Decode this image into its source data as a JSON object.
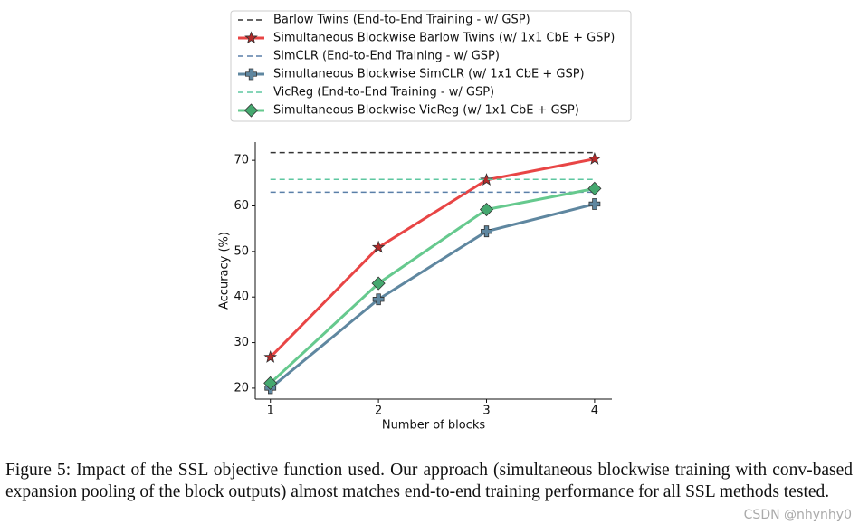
{
  "chart_data": {
    "type": "line",
    "x": [
      1,
      2,
      3,
      4
    ],
    "xlim": [
      0.86,
      4.16
    ],
    "xticks": [
      1,
      2,
      3,
      4
    ],
    "ylim": [
      17.6,
      74
    ],
    "yticks": [
      20,
      30,
      40,
      50,
      60,
      70
    ],
    "x_label": "Number of blocks",
    "y_label": "Accuracy (%)",
    "grid": false,
    "legend": "top",
    "series": [
      {
        "name": "Barlow Twins (End-to-End Training - w/ GSP)",
        "color": "#333333",
        "style": "dashed",
        "values": [
          71.7,
          71.7,
          71.7,
          71.7
        ]
      },
      {
        "name": "Simultaneous Blockwise Barlow Twins (w/ 1x1 CbE + GSP)",
        "color": "#e84545",
        "marker_color": "#b52a2a",
        "style": "solid",
        "marker": "star",
        "values": [
          26.8,
          50.9,
          65.7,
          70.3
        ]
      },
      {
        "name": "SimCLR (End-to-End Training - w/ GSP)",
        "color": "#5a7fa8",
        "style": "dashed",
        "values": [
          63.0,
          63.0,
          63.0,
          63.0
        ]
      },
      {
        "name": "Simultaneous Blockwise SimCLR (w/ 1x1 CbE + GSP)",
        "color": "#5f87a0",
        "marker_color": "#5f87a0",
        "style": "solid",
        "marker": "plus",
        "values": [
          20.0,
          39.5,
          54.4,
          60.4
        ]
      },
      {
        "name": "VicReg (End-to-End Training - w/ GSP)",
        "color": "#5ec7a0",
        "style": "dashed",
        "values": [
          65.8,
          65.8,
          65.8,
          65.8
        ]
      },
      {
        "name": "Simultaneous Blockwise VicReg (w/ 1x1 CbE + GSP)",
        "color": "#66c98e",
        "marker_color": "#45a86f",
        "style": "solid",
        "marker": "diamond",
        "values": [
          21.1,
          43.0,
          59.2,
          63.8
        ]
      }
    ]
  },
  "caption": "Figure 5: Impact of the SSL objective function used. Our approach (simultaneous blockwise training with conv-based expansion pooling of the block outputs) almost matches end-to-end training performance for all SSL methods tested.",
  "watermark": "CSDN @nhynhy0"
}
